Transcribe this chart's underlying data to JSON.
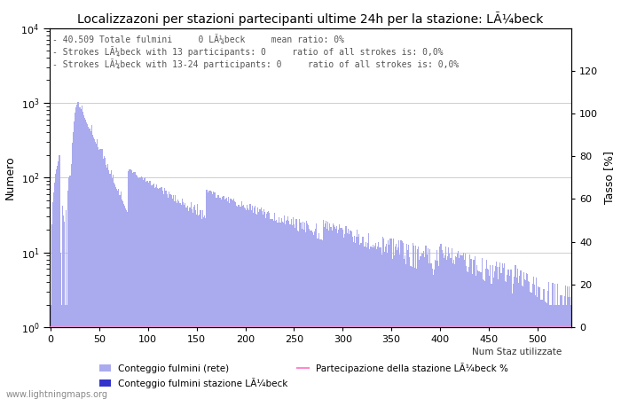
{
  "title": "Localizzazoni per stazioni partecipanti ultime 24h per la stazione: LÃ¼beck",
  "ylabel_left": "Numero",
  "ylabel_right": "Tasso [%]",
  "annotation_lines": [
    "40.509 Totale fulmini     0 LÃ¼beck     mean ratio: 0%",
    "Strokes LÃ¼beck with 13 participants: 0     ratio of all strokes is: 0,0%",
    "Strokes LÃ¼beck with 13-24 participants: 0     ratio of all strokes is: 0,0%"
  ],
  "xmax": 535,
  "ylim_left": [
    1.0,
    10000.0
  ],
  "ylim_right": [
    0,
    140
  ],
  "yticks_right": [
    0,
    20,
    40,
    60,
    80,
    100,
    120
  ],
  "xticks": [
    0,
    50,
    100,
    150,
    200,
    250,
    300,
    350,
    400,
    450,
    500
  ],
  "watermark": "www.lightningmaps.org",
  "background_color": "#ffffff",
  "grid_color": "#aaaaaa",
  "fill_color": "#aaaaee",
  "bar_color": "#3333cc",
  "line_color": "#ff88cc",
  "legend1_label": "Conteggio fulmini (rete)",
  "legend2_label": "Conteggio fulmini stazione LÃ¼beck",
  "legend3_label": "Partecipazione della stazione LÃ¼beck %",
  "legend4_label": "Num Staz utilizzate",
  "figsize": [
    7.0,
    4.5
  ],
  "dpi": 100
}
